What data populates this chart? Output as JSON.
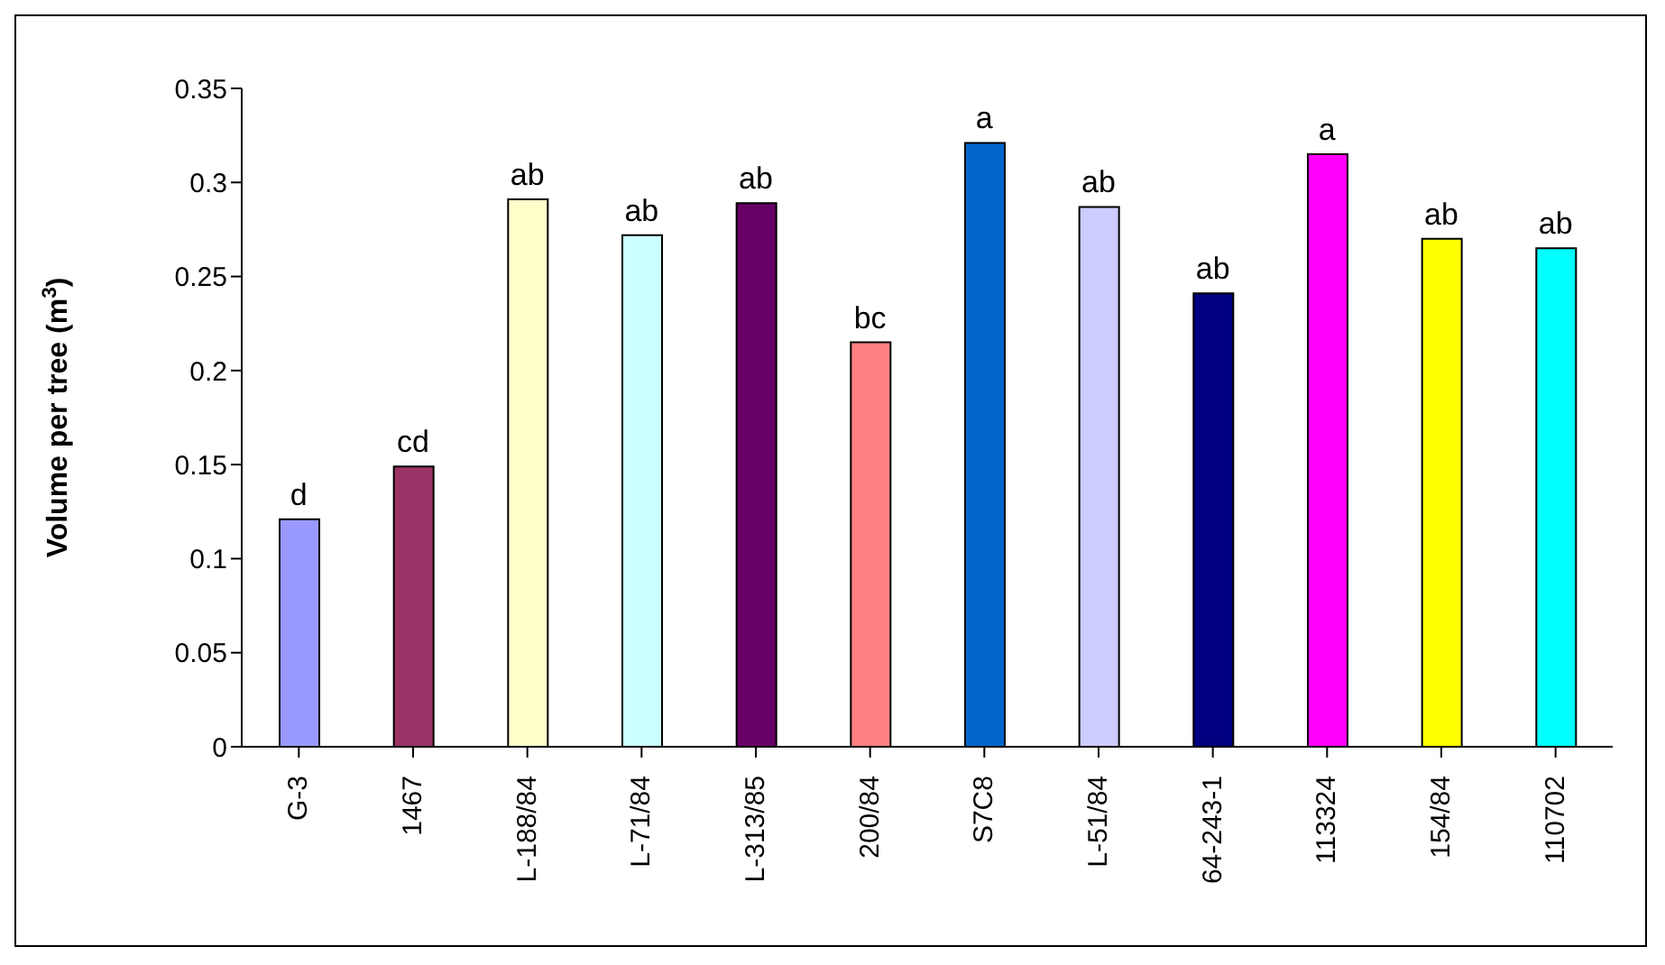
{
  "chart_data": {
    "type": "bar",
    "ylabel": "Volume per tree (m$^{3}$)",
    "categories": [
      "G-3",
      "1467",
      "L-188/84",
      "L-71/84",
      "L-313/85",
      "200/84",
      "S7C8",
      "L-51/84",
      "64-243-1",
      "113324",
      "154/84",
      "110702"
    ],
    "values": [
      0.121,
      0.149,
      0.291,
      0.272,
      0.289,
      0.215,
      0.321,
      0.287,
      0.241,
      0.315,
      0.27,
      0.265
    ],
    "colors": [
      "#9999ff",
      "#993366",
      "#ffffcc",
      "#ccffff",
      "#660066",
      "#ff8080",
      "#0066cc",
      "#ccccff",
      "#000080",
      "#ff00ff",
      "#ffff00",
      "#00ffff"
    ],
    "ylim": [
      0,
      0.35
    ],
    "yticks": [
      0,
      0.05,
      0.1,
      0.15,
      0.2,
      0.25,
      0.3,
      0.35
    ],
    "grid": false,
    "legend": false,
    "annotations": [
      {
        "text": "d",
        "x": "G-3",
        "y": 0.121
      },
      {
        "text": "cd",
        "x": "1467",
        "y": 0.149
      },
      {
        "text": "ab",
        "x": "L-188/84",
        "y": 0.291
      },
      {
        "text": "ab",
        "x": "L-71/84",
        "y": 0.272
      },
      {
        "text": "ab",
        "x": "L-313/85",
        "y": 0.289
      },
      {
        "text": "bc",
        "x": "200/84",
        "y": 0.215
      },
      {
        "text": "a",
        "x": "S7C8",
        "y": 0.321
      },
      {
        "text": "ab",
        "x": "L-51/84",
        "y": 0.287
      },
      {
        "text": "ab",
        "x": "64-243-1",
        "y": 0.241
      },
      {
        "text": "a",
        "x": "113324",
        "y": 0.315
      },
      {
        "text": "ab",
        "x": "154/84",
        "y": 0.27
      },
      {
        "text": "ab",
        "x": "110702",
        "y": 0.265
      }
    ]
  }
}
